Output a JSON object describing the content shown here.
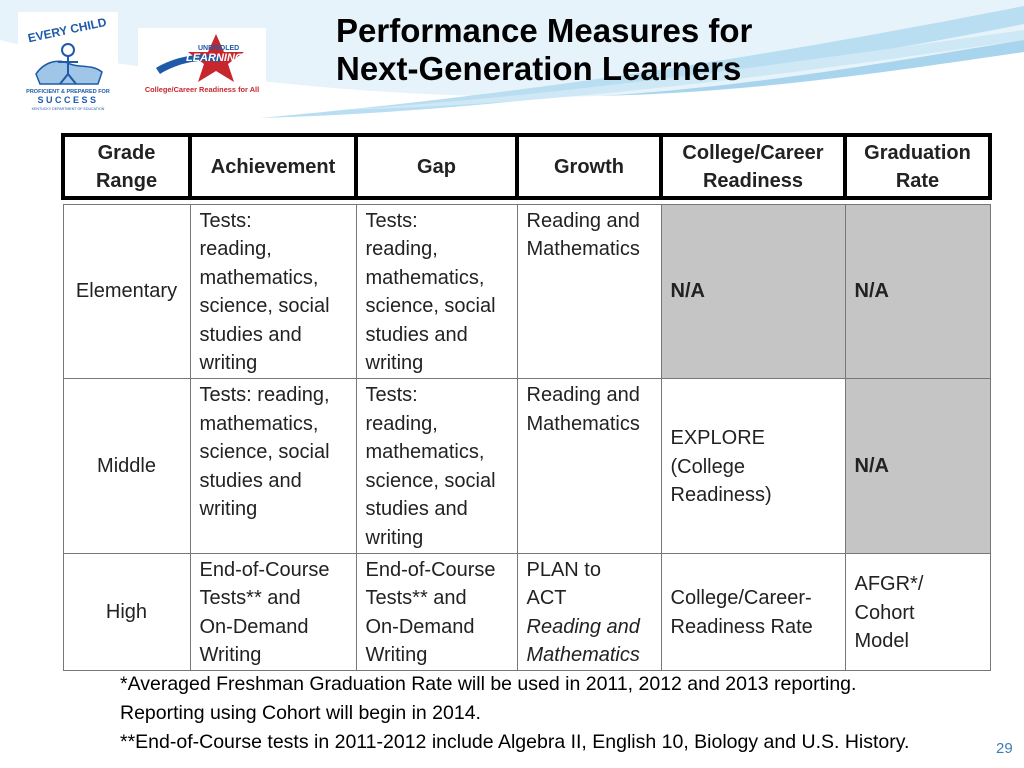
{
  "slide": {
    "title_line1": "Performance Measures for",
    "title_line2": "Next-Generation Learners",
    "page_number": "29"
  },
  "logos": {
    "every_child": {
      "line1": "EVERY CHILD",
      "line2": "PROFICIENT & PREPARED FOR",
      "line3": "SUCCESS",
      "line4": "KENTUCKY DEPARTMENT OF EDUCATION"
    },
    "unbridled": {
      "line1": "UNBRIDLED",
      "line2": "LEARNING",
      "line3": "College/Career Readiness for All"
    }
  },
  "table": {
    "headers": [
      "Grade Range",
      "Achievement",
      "Gap",
      "Growth",
      "College/Career Readiness",
      "Graduation Rate"
    ],
    "rows": [
      {
        "grade": "Elementary",
        "achievement": [
          "Tests:",
          "reading,",
          "mathematics,",
          "science, social",
          "studies and",
          "writing"
        ],
        "gap": [
          "Tests:",
          "reading,",
          "mathematics,",
          "science, social",
          "studies and",
          "writing"
        ],
        "growth": [
          "Reading and",
          "Mathematics"
        ],
        "ccr": "N/A",
        "grad": "N/A"
      },
      {
        "grade": "Middle",
        "achievement": [
          "Tests: reading,",
          "mathematics,",
          "science, social",
          "studies and",
          "writing"
        ],
        "gap": [
          "Tests:",
          "reading,",
          "mathematics,",
          "science, social",
          "studies and",
          "writing"
        ],
        "growth": [
          "Reading and",
          "Mathematics"
        ],
        "ccr": [
          "EXPLORE",
          "(College",
          "Readiness)"
        ],
        "grad": "N/A"
      },
      {
        "grade": "High",
        "achievement": [
          "End-of-Course",
          "Tests** and",
          "On-Demand",
          "Writing"
        ],
        "gap": [
          "End-of-Course",
          "Tests** and",
          "On-Demand",
          "Writing"
        ],
        "growth": [
          "PLAN to",
          "ACT",
          "Reading and",
          "Mathematics"
        ],
        "ccr": [
          "College/Career-",
          "Readiness Rate"
        ],
        "grad": [
          "AFGR*/",
          "Cohort",
          "Model"
        ]
      }
    ]
  },
  "notes": [
    "*Averaged Freshman Graduation Rate will be used in 2011, 2012 and 2013 reporting.",
    "Reporting using Cohort will begin in 2014.",
    "**End-of-Course tests in 2011-2012 include Algebra II, English 10, Biology and U.S. History."
  ],
  "colors": {
    "swoosh_light": "#d6ecf7",
    "swoosh_mid": "#a9d4ee",
    "na_fill": "#c5c5c5",
    "page_number": "#3a7fb8",
    "every_child_blue": "#1e5aa8",
    "unbridled_red": "#c8262d"
  }
}
